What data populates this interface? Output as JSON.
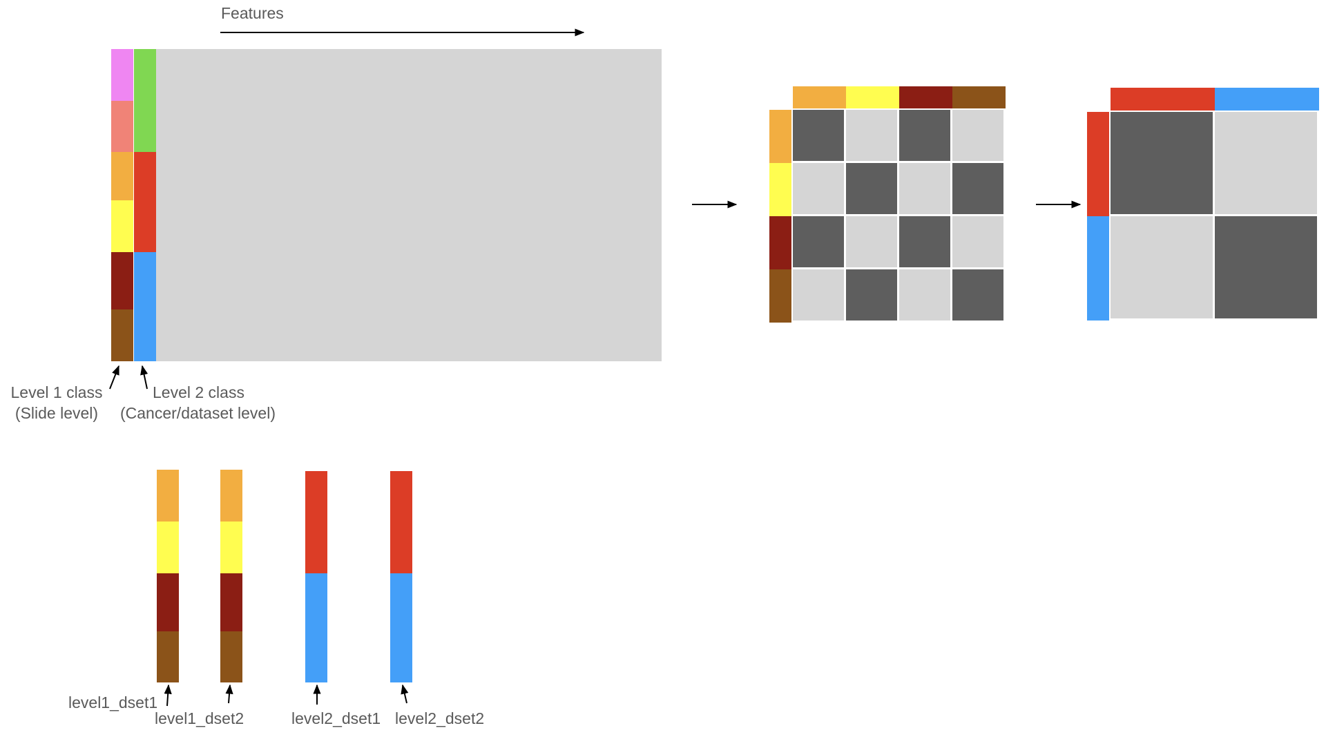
{
  "labels": {
    "features": "Features",
    "level1_class": "Level 1 class",
    "level1_sub": "(Slide level)",
    "level2_class": "Level 2 class",
    "level2_sub": "(Cancer/dataset level)",
    "level1_dset1": "level1_dset1",
    "level1_dset2": "level1_dset2",
    "level2_dset1": "level2_dset1",
    "level2_dset2": "level2_dset2"
  },
  "colors": {
    "pink": "#ef86f2",
    "salmon": "#f08377",
    "orange": "#f2ae41",
    "yellow": "#fffd50",
    "darkred": "#8b1e14",
    "brown": "#8b5319",
    "green": "#80d752",
    "red": "#dc3d26",
    "blue": "#449ff8",
    "matrix": "#d5d5d5",
    "dark_cell": "#5e5e5e",
    "light_cell": "#d5d5d5"
  },
  "level1_classes": [
    "pink",
    "salmon",
    "orange",
    "yellow",
    "darkred",
    "brown"
  ],
  "level2_classes": [
    "green",
    "red",
    "blue"
  ],
  "similarity_4x4": {
    "classes": [
      "orange",
      "yellow",
      "darkred",
      "brown"
    ],
    "pattern": [
      [
        1,
        0,
        1,
        0
      ],
      [
        0,
        1,
        0,
        1
      ],
      [
        1,
        0,
        1,
        0
      ],
      [
        0,
        1,
        0,
        1
      ]
    ]
  },
  "similarity_2x2": {
    "classes": [
      "red",
      "blue"
    ],
    "pattern": [
      [
        1,
        0
      ],
      [
        0,
        1
      ]
    ]
  },
  "bars": {
    "level1_dset1": [
      "orange",
      "yellow",
      "darkred",
      "brown"
    ],
    "level1_dset2": [
      "orange",
      "yellow",
      "darkred",
      "brown"
    ],
    "level2_dset1": [
      "red",
      "blue"
    ],
    "level2_dset2": [
      "red",
      "blue"
    ]
  }
}
